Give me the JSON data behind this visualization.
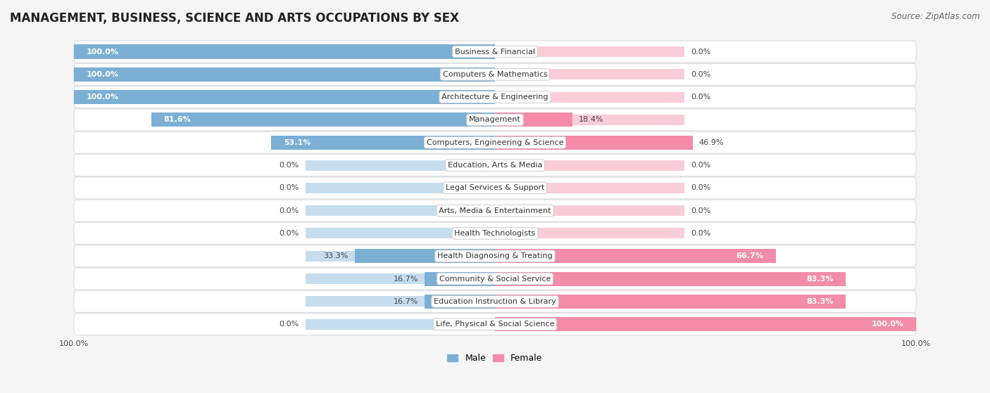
{
  "title": "MANAGEMENT, BUSINESS, SCIENCE AND ARTS OCCUPATIONS BY SEX",
  "source": "Source: ZipAtlas.com",
  "categories": [
    "Business & Financial",
    "Computers & Mathematics",
    "Architecture & Engineering",
    "Management",
    "Computers, Engineering & Science",
    "Education, Arts & Media",
    "Legal Services & Support",
    "Arts, Media & Entertainment",
    "Health Technologists",
    "Health Diagnosing & Treating",
    "Community & Social Service",
    "Education Instruction & Library",
    "Life, Physical & Social Science"
  ],
  "male": [
    100.0,
    100.0,
    100.0,
    81.6,
    53.1,
    0.0,
    0.0,
    0.0,
    0.0,
    33.3,
    16.7,
    16.7,
    0.0
  ],
  "female": [
    0.0,
    0.0,
    0.0,
    18.4,
    46.9,
    0.0,
    0.0,
    0.0,
    0.0,
    66.7,
    83.3,
    83.3,
    100.0
  ],
  "male_color": "#7bafd4",
  "female_color": "#f28ca8",
  "bg_color": "#f5f5f5",
  "row_bg_color": "#ffffff",
  "bar_bg_male": "#c5ddef",
  "bar_bg_female": "#f9cdd8",
  "title_fontsize": 12,
  "source_fontsize": 8.5,
  "label_fontsize": 8,
  "pct_fontsize": 8,
  "bar_height": 0.62
}
